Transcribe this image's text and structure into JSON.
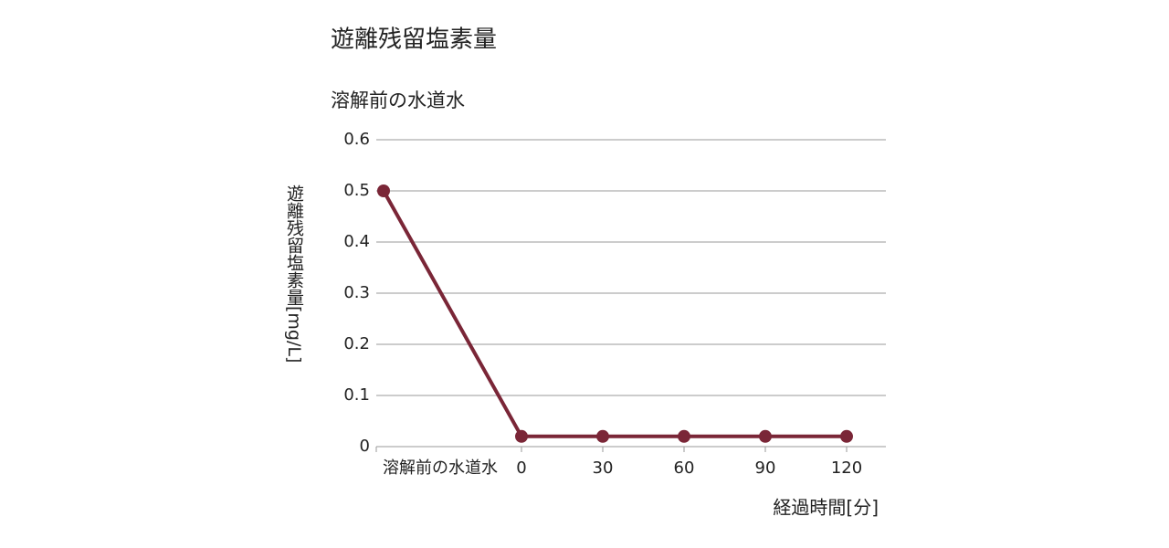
{
  "chart_data": {
    "type": "line",
    "title": "遊離残留塩素量",
    "subtitle": "溶解前の水道水",
    "y_label": "遊離残留塩素量[mg/L]",
    "x_label": "経過時間[分]",
    "categories": [
      "溶解前の水道水",
      "0",
      "30",
      "60",
      "90",
      "120"
    ],
    "series": [
      {
        "name": "遊離残留塩素量",
        "color": "#7a2637",
        "values": [
          0.5,
          0.02,
          0.02,
          0.02,
          0.02,
          0.02
        ]
      }
    ],
    "ylim": [
      0,
      0.6
    ],
    "yticks": [
      0,
      0.1,
      0.2,
      0.3,
      0.4,
      0.5,
      0.6
    ],
    "grid": true
  }
}
